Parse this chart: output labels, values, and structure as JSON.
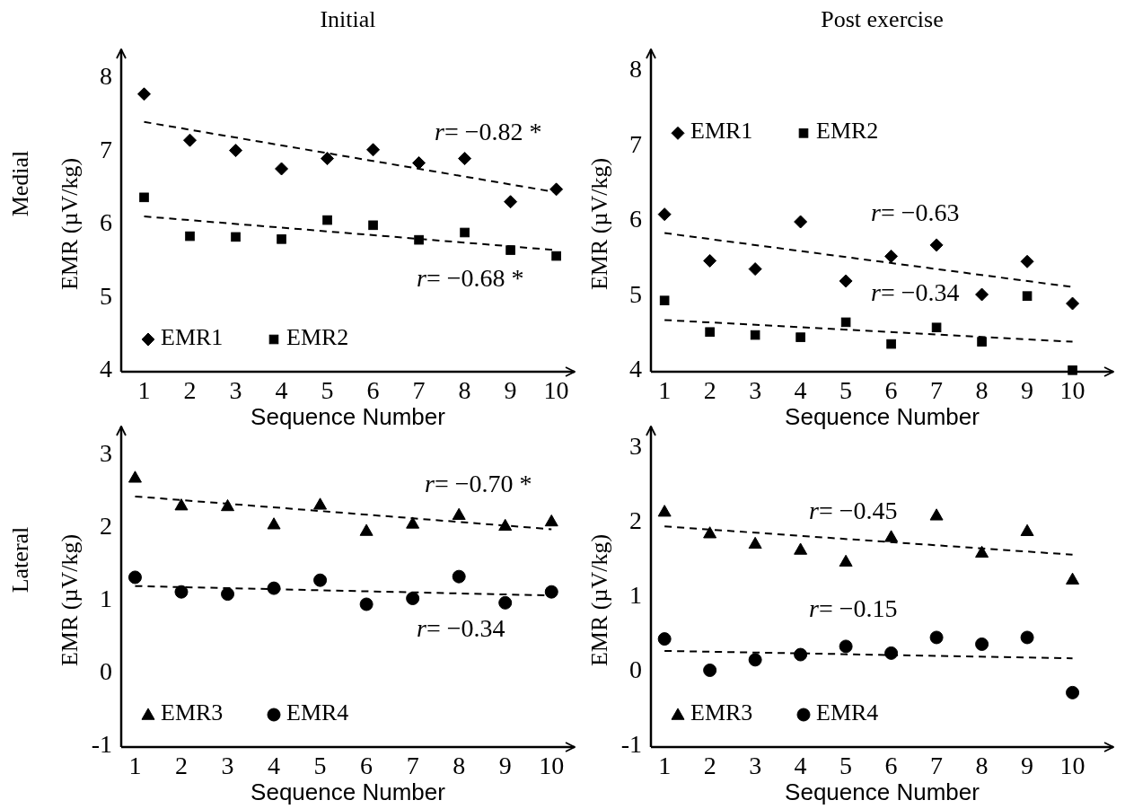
{
  "chart_data": [
    {
      "type": "scatter",
      "title": "Initial",
      "xlabel": "Sequence Number",
      "ylabel": "EMR (µV/kg)",
      "xlim": [
        0.5,
        10.4
      ],
      "xticks": [
        1,
        2,
        3,
        4,
        5,
        6,
        7,
        8,
        9,
        10
      ],
      "ylim": [
        4,
        8.4
      ],
      "yticks": [
        4,
        5,
        6,
        7,
        8
      ],
      "grid": false,
      "legend": "bottom left",
      "annotations": [
        "Medial",
        "r= −0.82 *",
        "r= −0.68 *"
      ],
      "series": [
        {
          "name": "EMR1",
          "color": "#000000",
          "marker": "diamond",
          "x": [
            1,
            2,
            3,
            4,
            5,
            6,
            7,
            8,
            9,
            10
          ],
          "values": [
            7.79,
            7.16,
            7.02,
            6.77,
            6.91,
            7.03,
            6.85,
            6.91,
            6.32,
            6.49
          ]
        },
        {
          "name": "EMR2",
          "color": "#000000",
          "marker": "square",
          "x": [
            1,
            2,
            3,
            4,
            5,
            6,
            7,
            8,
            9,
            10
          ],
          "values": [
            6.38,
            5.85,
            5.84,
            5.81,
            6.07,
            6.0,
            5.8,
            5.9,
            5.66,
            5.58
          ]
        },
        {
          "type": "line",
          "color": "#000000",
          "line_style": "dashed",
          "x": [
            1,
            10
          ],
          "values": [
            7.41,
            6.45
          ]
        },
        {
          "type": "line",
          "color": "#000000",
          "line_style": "dashed",
          "x": [
            1,
            10
          ],
          "values": [
            6.12,
            5.66
          ]
        }
      ]
    },
    {
      "type": "scatter",
      "title": "Post exercise",
      "xlabel": "Sequence Number",
      "ylabel": "EMR (µV/kg)",
      "xlim": [
        0.7,
        10.9
      ],
      "xticks": [
        1,
        2,
        3,
        4,
        5,
        6,
        7,
        8,
        9,
        10
      ],
      "ylim": [
        4,
        8.3
      ],
      "yticks": [
        4,
        5,
        6,
        7,
        8
      ],
      "grid": false,
      "legend": "top left",
      "annotations": [
        "r= −0.63",
        "r= −0.34"
      ],
      "series": [
        {
          "name": "EMR1",
          "color": "#000000",
          "marker": "diamond",
          "x": [
            1,
            2,
            3,
            4,
            5,
            6,
            7,
            8,
            9,
            10
          ],
          "values": [
            6.1,
            5.48,
            5.37,
            6.0,
            5.21,
            5.54,
            5.69,
            5.03,
            5.47,
            4.91
          ]
        },
        {
          "name": "EMR2",
          "color": "#000000",
          "marker": "square",
          "x": [
            1,
            2,
            3,
            4,
            5,
            6,
            7,
            8,
            9,
            10
          ],
          "values": [
            4.95,
            4.53,
            4.49,
            4.46,
            4.66,
            4.37,
            4.59,
            4.4,
            5.01,
            4.02
          ]
        },
        {
          "type": "line",
          "color": "#000000",
          "line_style": "dashed",
          "x": [
            1,
            10
          ],
          "values": [
            5.85,
            5.13
          ]
        },
        {
          "type": "line",
          "color": "#000000",
          "line_style": "dashed",
          "x": [
            1,
            10
          ],
          "values": [
            4.69,
            4.4
          ]
        }
      ]
    },
    {
      "type": "scatter",
      "xlabel": "Sequence Number",
      "ylabel": "EMR (µV/kg)",
      "xlim": [
        0.7,
        10.5
      ],
      "xticks": [
        1,
        2,
        3,
        4,
        5,
        6,
        7,
        8,
        9,
        10
      ],
      "ylim": [
        -1,
        3.4
      ],
      "yticks": [
        -1,
        0,
        1,
        2,
        3
      ],
      "grid": false,
      "legend": "bottom left",
      "annotations": [
        "Lateral",
        "r= −0.70 *",
        "r= −0.34"
      ],
      "series": [
        {
          "name": "EMR3",
          "color": "#000000",
          "marker": "triangle",
          "x": [
            1,
            2,
            3,
            4,
            5,
            6,
            7,
            8,
            9,
            10
          ],
          "values": [
            2.7,
            2.32,
            2.31,
            2.06,
            2.33,
            1.97,
            2.07,
            2.19,
            2.04,
            2.1
          ]
        },
        {
          "name": "EMR4",
          "color": "#000000",
          "marker": "circle",
          "x": [
            1,
            2,
            3,
            4,
            5,
            6,
            7,
            8,
            9,
            10
          ],
          "values": [
            1.33,
            1.13,
            1.1,
            1.18,
            1.29,
            0.96,
            1.04,
            1.34,
            0.98,
            1.13
          ]
        },
        {
          "type": "line",
          "color": "#000000",
          "line_style": "dashed",
          "x": [
            1,
            10
          ],
          "values": [
            2.44,
            1.99
          ]
        },
        {
          "type": "line",
          "color": "#000000",
          "line_style": "dashed",
          "x": [
            1,
            10
          ],
          "values": [
            1.21,
            1.08
          ]
        }
      ]
    },
    {
      "type": "scatter",
      "xlabel": "Sequence Number",
      "ylabel": "EMR (µV/kg)",
      "xlim": [
        0.7,
        10.9
      ],
      "xticks": [
        1,
        2,
        3,
        4,
        5,
        6,
        7,
        8,
        9,
        10
      ],
      "ylim": [
        -1,
        3.3
      ],
      "yticks": [
        -1,
        0,
        1,
        2,
        3
      ],
      "grid": false,
      "legend": "bottom left",
      "annotations": [
        "r= −0.45",
        "r= −0.15"
      ],
      "series": [
        {
          "name": "EMR3",
          "color": "#000000",
          "marker": "triangle",
          "x": [
            1,
            2,
            3,
            4,
            5,
            6,
            7,
            8,
            9,
            10
          ],
          "values": [
            2.16,
            1.87,
            1.73,
            1.65,
            1.49,
            1.82,
            2.11,
            1.61,
            1.9,
            1.25
          ]
        },
        {
          "name": "EMR4",
          "color": "#000000",
          "marker": "circle",
          "x": [
            1,
            2,
            3,
            4,
            5,
            6,
            7,
            8,
            9,
            10
          ],
          "values": [
            0.45,
            0.03,
            0.17,
            0.24,
            0.35,
            0.26,
            0.47,
            0.38,
            0.47,
            -0.27
          ]
        },
        {
          "type": "line",
          "color": "#000000",
          "line_style": "dashed",
          "x": [
            1,
            10
          ],
          "values": [
            1.96,
            1.58
          ]
        },
        {
          "type": "line",
          "color": "#000000",
          "line_style": "dashed",
          "x": [
            1,
            10
          ],
          "values": [
            0.29,
            0.19
          ]
        }
      ]
    }
  ]
}
